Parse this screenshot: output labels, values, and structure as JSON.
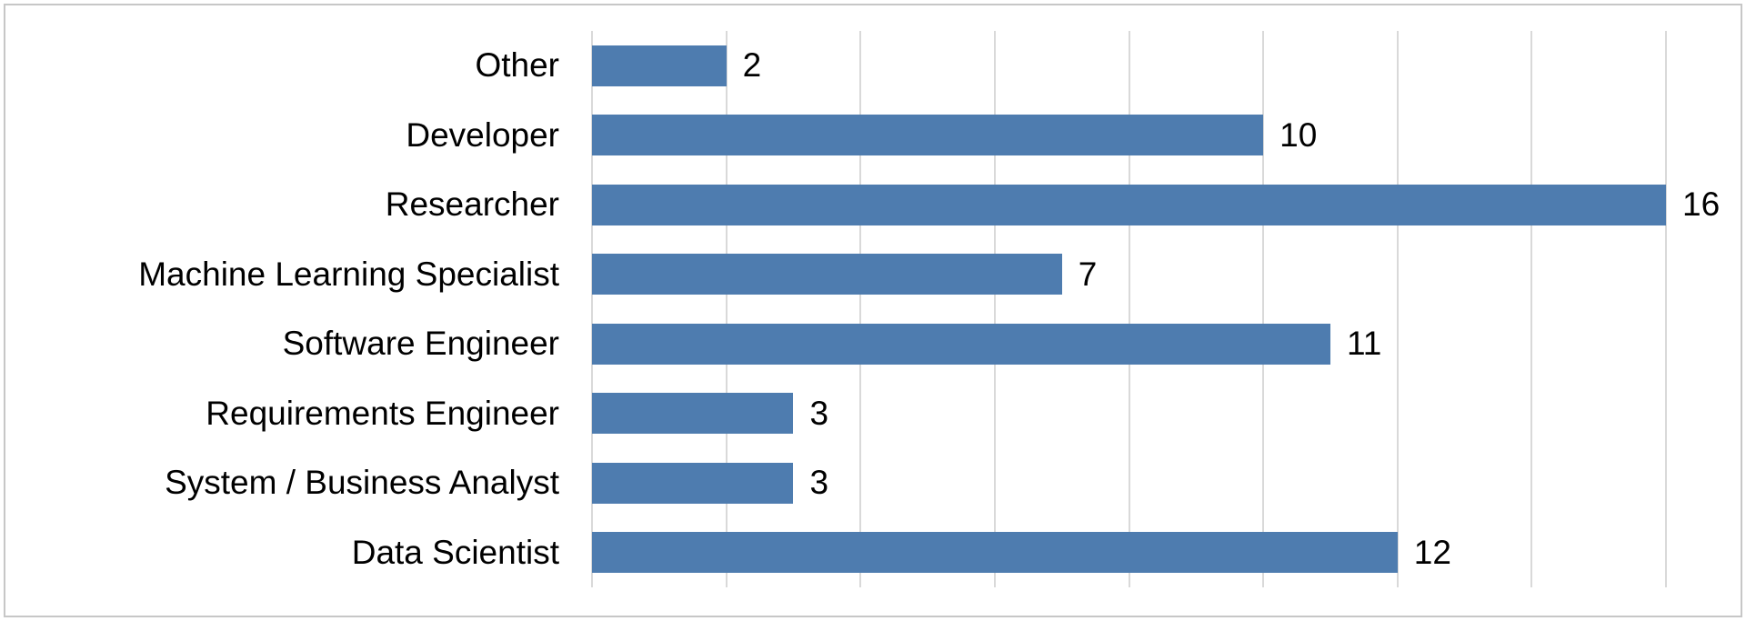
{
  "chart_data": {
    "type": "bar",
    "orientation": "horizontal",
    "title": "",
    "xlabel": "",
    "ylabel": "",
    "categories": [
      "Other",
      "Developer",
      "Researcher",
      "Machine Learning Specialist",
      "Software Engineer",
      "Requirements Engineer",
      "System / Business Analyst",
      "Data Scientist"
    ],
    "values": [
      2,
      10,
      16,
      7,
      11,
      3,
      3,
      12
    ],
    "data_labels": [
      2,
      10,
      16,
      7,
      11,
      3,
      3,
      12
    ],
    "data_label_position": "outside-end",
    "xlim": [
      0,
      16
    ],
    "gridline_interval": 2,
    "gridline_values": [
      0,
      2,
      4,
      6,
      8,
      10,
      12,
      14,
      16
    ],
    "axis_tick_labels_visible": false,
    "legend": "none",
    "grid": "vertical-only"
  },
  "colors": {
    "bar": "#4e7caf",
    "gridline": "#d9d9d9",
    "label_text": "#000000",
    "background": "#ffffff",
    "outer_border": "#c7c7c7"
  }
}
